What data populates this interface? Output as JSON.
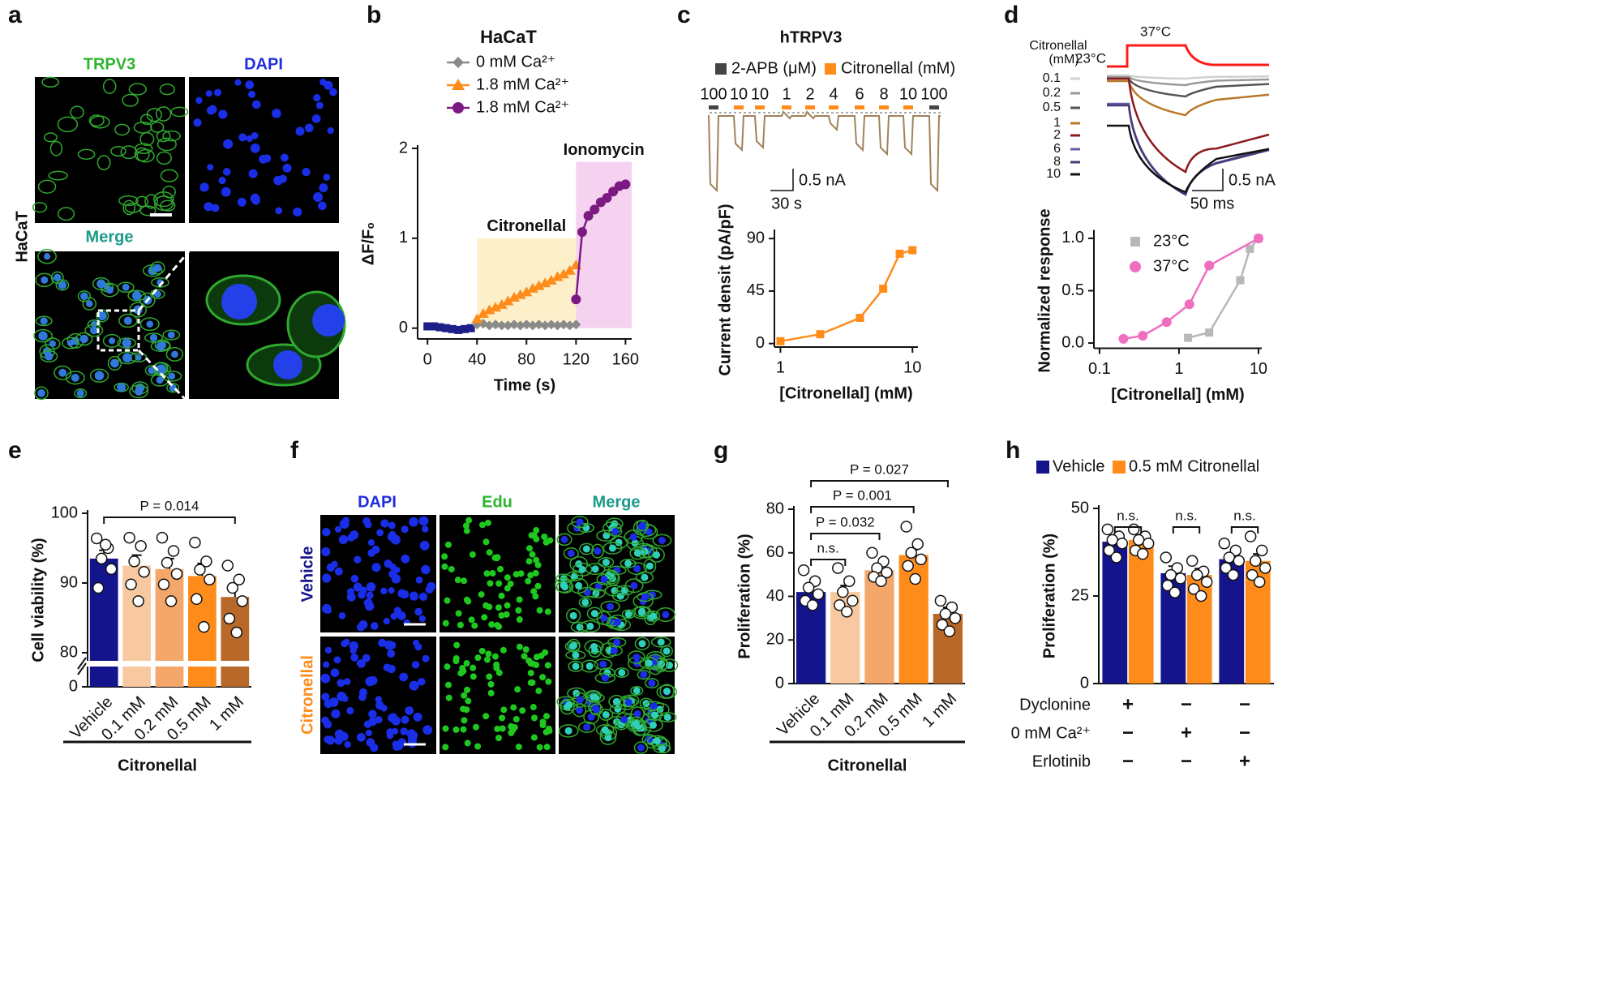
{
  "panel_letters": [
    "a",
    "b",
    "c",
    "d",
    "e",
    "f",
    "g",
    "h"
  ],
  "image_a": {
    "columns": [
      "TRPV3",
      "DAPI"
    ],
    "merge": "Merge",
    "row": "HaCaT"
  },
  "image_f": {
    "columns": [
      "DAPI",
      "Edu",
      "Merge"
    ],
    "rows": [
      "Vehicle",
      "Citronellal"
    ]
  },
  "trace_c": {
    "title": "hTRPV3",
    "legend": [
      "2-APB (μM)",
      "Citronellal (mM)"
    ],
    "doses": [
      "100",
      "10",
      "10",
      "1",
      "2",
      "4",
      "6",
      "8",
      "10",
      "100"
    ],
    "scale_y": "0.5 nA",
    "scale_x": "30 s"
  },
  "trace_d": {
    "legend_title": "Citronellal",
    "legend_unit": "(mM)",
    "temps": [
      "23°C",
      "37°C"
    ],
    "doses": [
      "0.1",
      "0.2",
      "0.5",
      "1",
      "2",
      "6",
      "8",
      "10"
    ],
    "scale_y": "0.5 nA",
    "scale_x": "50 ms"
  },
  "chart_data": [
    {
      "type": "line",
      "title": "HaCaT",
      "xlabel": "Time (s)",
      "ylabel": "ΔF/F₀",
      "xlim": [
        -8,
        165
      ],
      "ylim": [
        -0.12,
        2
      ],
      "xticks": [
        0,
        40,
        80,
        120,
        160
      ],
      "yticks": [
        0,
        1,
        2
      ],
      "regions": [
        {
          "label": "Citronellal",
          "x": [
            40,
            120
          ],
          "y": [
            0,
            1
          ],
          "color": "#fcefc9"
        },
        {
          "label": "Ionomycin",
          "x": [
            120,
            165
          ],
          "y": [
            0,
            1.85
          ],
          "color": "#f4d2f0"
        }
      ],
      "series": [
        {
          "color": "#1f1f8a",
          "marker": "square",
          "x": [
            0,
            5,
            10,
            15,
            20,
            25,
            30,
            35
          ],
          "values": [
            0.02,
            0.02,
            0.01,
            0,
            -0.01,
            -0.02,
            -0.01,
            0
          ]
        },
        {
          "name": "0 mM Ca²⁺",
          "color": "#8a8a8a",
          "marker": "diamond",
          "x": [
            40,
            45,
            50,
            55,
            60,
            65,
            70,
            75,
            80,
            85,
            90,
            95,
            100,
            105,
            110,
            115,
            120
          ],
          "values": [
            0.04,
            0.05,
            0.03,
            0.04,
            0.03,
            0.03,
            0.04,
            0.03,
            0.04,
            0.03,
            0.04,
            0.03,
            0.04,
            0.03,
            0.04,
            0.03,
            0.04
          ]
        },
        {
          "name": "1.8 mM Ca²⁺",
          "color": "#ff8c1a",
          "marker": "triangle",
          "x": [
            40,
            45,
            50,
            55,
            60,
            65,
            70,
            75,
            80,
            85,
            90,
            95,
            100,
            105,
            110,
            115,
            120
          ],
          "values": [
            0.1,
            0.16,
            0.2,
            0.23,
            0.26,
            0.3,
            0.34,
            0.37,
            0.4,
            0.44,
            0.47,
            0.5,
            0.53,
            0.57,
            0.6,
            0.64,
            0.7
          ]
        },
        {
          "name": "1.8 mM Ca²⁺",
          "color": "#7b1a82",
          "marker": "circle",
          "x": [
            120,
            125,
            130,
            135,
            140,
            145,
            150,
            155,
            160
          ],
          "values": [
            0.32,
            1.07,
            1.25,
            1.32,
            1.4,
            1.45,
            1.52,
            1.58,
            1.6
          ]
        }
      ]
    },
    {
      "type": "line",
      "xlabel": "[Citronellal] (mM)",
      "ylabel": "Current densit (pA/pF)",
      "xscale": "log",
      "xlim": [
        0.9,
        11
      ],
      "ylim": [
        -3,
        95
      ],
      "xticks": [
        1,
        10
      ],
      "yticks": [
        0,
        45,
        90
      ],
      "series": [
        {
          "color": "#ff8c1a",
          "marker": "square",
          "x": [
            1,
            2,
            4,
            6,
            8,
            10
          ],
          "values": [
            2,
            8,
            22,
            47,
            77,
            80
          ]
        }
      ]
    },
    {
      "type": "line",
      "xlabel": "[Citronellal] (mM)",
      "ylabel": "Normalized response",
      "xscale": "log",
      "xlim": [
        0.085,
        11
      ],
      "ylim": [
        -0.05,
        1.05
      ],
      "xticks": [
        0.1,
        1,
        10
      ],
      "yticks": [
        {
          "value": 0,
          "label": "0.0"
        },
        {
          "value": 0.5,
          "label": "0.5"
        },
        {
          "value": 1,
          "label": "1.0"
        }
      ],
      "series": [
        {
          "name": "23°C",
          "color": "#b8b8b8",
          "marker": "square",
          "x": [
            1.3,
            2.4,
            5.9,
            7.8,
            10
          ],
          "values": [
            0.05,
            0.1,
            0.6,
            0.9,
            1
          ]
        },
        {
          "name": "37°C",
          "color": "#f06ec0",
          "marker": "circle",
          "x": [
            0.2,
            0.35,
            0.7,
            1.35,
            2.4,
            10
          ],
          "values": [
            0.04,
            0.07,
            0.2,
            0.37,
            0.74,
            1
          ]
        }
      ]
    },
    {
      "type": "bar",
      "ylabel": "Cell viability (%)",
      "group_label": "Citronellal",
      "categories": [
        "Vehicle",
        "0.1 mM",
        "0.2 mM",
        "0.5 mM",
        "1 mM"
      ],
      "values": [
        93.5,
        92.5,
        92,
        91,
        88
      ],
      "errors": [
        1.2,
        1.5,
        1.5,
        1.8,
        2
      ],
      "colors": [
        "#14148c",
        "#f8c9a0",
        "#f4a76a",
        "#ff8c1a",
        "#b8692a"
      ],
      "points": [
        [
          96.4,
          95,
          93.5,
          92,
          89.3,
          95.5
        ],
        [
          96.5,
          95.3,
          93.1,
          91.6,
          89.8,
          87.4
        ],
        [
          96.5,
          94.6,
          92.9,
          91.3,
          89.8,
          87.4
        ],
        [
          95.8,
          93.1,
          91.9,
          90.5,
          87.7,
          83.7
        ],
        [
          92.5,
          90.5,
          89.3,
          87.4,
          84.9,
          82.9
        ]
      ],
      "ylim": [
        0,
        100
      ],
      "axis_break": [
        0,
        80
      ],
      "yticks": [
        0,
        80,
        90,
        100
      ],
      "brackets": [
        {
          "from": 0,
          "to": 4,
          "label": "P = 0.014"
        }
      ]
    },
    {
      "type": "bar",
      "ylabel": "Proliferation (%)",
      "group_label": "Citronellal",
      "categories": [
        "Vehicle",
        "0.1 mM",
        "0.2 mM",
        "0.5 mM",
        "1 mM"
      ],
      "values": [
        42,
        42,
        52,
        59,
        32
      ],
      "errors": [
        2.5,
        3,
        2,
        2.5,
        3
      ],
      "colors": [
        "#14148c",
        "#f8c9a0",
        "#f4a76a",
        "#ff8c1a",
        "#b8692a"
      ],
      "points": [
        [
          52,
          47,
          44,
          41,
          38,
          36
        ],
        [
          53,
          47,
          42,
          38,
          36,
          33
        ],
        [
          60,
          56,
          53,
          51,
          49,
          47
        ],
        [
          72,
          64,
          60,
          57,
          54,
          48
        ],
        [
          38,
          35,
          32,
          30,
          27,
          24
        ]
      ],
      "ylim": [
        0,
        80
      ],
      "yticks": [
        0,
        20,
        40,
        60,
        80
      ],
      "brackets": [
        {
          "from": 0,
          "to": 1,
          "label": "n.s."
        },
        {
          "from": 0,
          "to": 2,
          "label": "P = 0.032"
        },
        {
          "from": 0,
          "to": 3,
          "label": "P = 0.001"
        },
        {
          "from": 0,
          "to": 4,
          "label": "P = 0.027"
        }
      ]
    },
    {
      "type": "grouped_bar",
      "ylabel": "Proliferation (%)",
      "categories": [
        null,
        null,
        null
      ],
      "ylim": [
        0,
        50
      ],
      "yticks": [
        0,
        25,
        50
      ],
      "series": [
        {
          "name": "Vehicle",
          "color": "#14148c",
          "values": [
            40.5,
            31.5,
            35.5
          ],
          "errors": [
            1.5,
            2,
            1.5
          ],
          "points": [
            [
              44,
              42,
              41,
              40,
              38,
              36
            ],
            [
              36,
              33,
              31,
              30,
              28,
              26
            ],
            [
              40,
              38,
              36,
              35,
              33,
              31
            ]
          ]
        },
        {
          "name": "0.5 mM Citronellal",
          "color": "#ff8c1a",
          "values": [
            41,
            31,
            35
          ],
          "errors": [
            1.5,
            1.8,
            2
          ],
          "points": [
            [
              44,
              42,
              41,
              40,
              38,
              37
            ],
            [
              35,
              32,
              31,
              29,
              27,
              25
            ],
            [
              42,
              38,
              35,
              33,
              31,
              29
            ]
          ]
        }
      ],
      "brackets": [
        {
          "group": 0,
          "label": "n.s."
        },
        {
          "group": 1,
          "label": "n.s."
        },
        {
          "group": 2,
          "label": "n.s."
        }
      ],
      "conditions": [
        {
          "name": "Dyclonine",
          "marks": [
            "+",
            "−",
            "−"
          ]
        },
        {
          "name": "0 mM Ca²⁺",
          "marks": [
            "−",
            "+",
            "−"
          ]
        },
        {
          "name": "Erlotinib",
          "marks": [
            "−",
            "−",
            "+"
          ]
        }
      ]
    }
  ]
}
